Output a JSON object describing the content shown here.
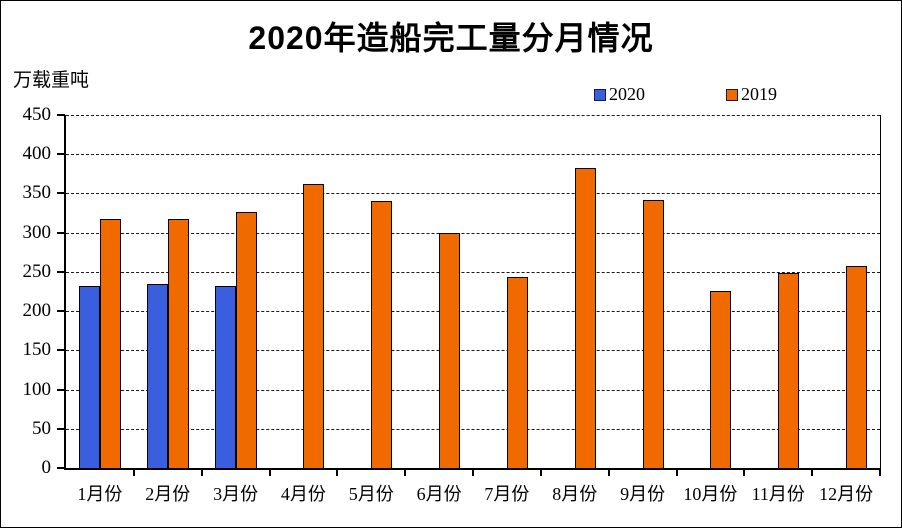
{
  "page": {
    "title": "2020年造船完工量分月情况",
    "unit_label": "万载重吨"
  },
  "legend": [
    {
      "label": "2020",
      "color": "#3A5FDE"
    },
    {
      "label": "2019",
      "color": "#F06A00"
    }
  ],
  "chart_data": {
    "type": "bar",
    "title": "2020年造船完工量分月情况",
    "ylabel": "万载重吨",
    "xlabel": "",
    "categories": [
      "1月份",
      "2月份",
      "3月份",
      "4月份",
      "5月份",
      "6月份",
      "7月份",
      "8月份",
      "9月份",
      "10月份",
      "11月份",
      "12月份"
    ],
    "series": [
      {
        "name": "2020",
        "color": "#3A5FDE",
        "values": [
          232,
          234,
          232,
          null,
          null,
          null,
          null,
          null,
          null,
          null,
          null,
          null
        ]
      },
      {
        "name": "2019",
        "color": "#F06A00",
        "values": [
          317,
          317,
          326,
          362,
          341,
          299,
          244,
          382,
          342,
          226,
          249,
          257
        ]
      }
    ],
    "ylim": [
      0,
      450
    ],
    "y_ticks": [
      0,
      50,
      100,
      150,
      200,
      250,
      300,
      350,
      400,
      450
    ],
    "grid": true,
    "gridline_style": "dashed",
    "legend_position": "top-right",
    "bar_border_color": "#000000"
  }
}
